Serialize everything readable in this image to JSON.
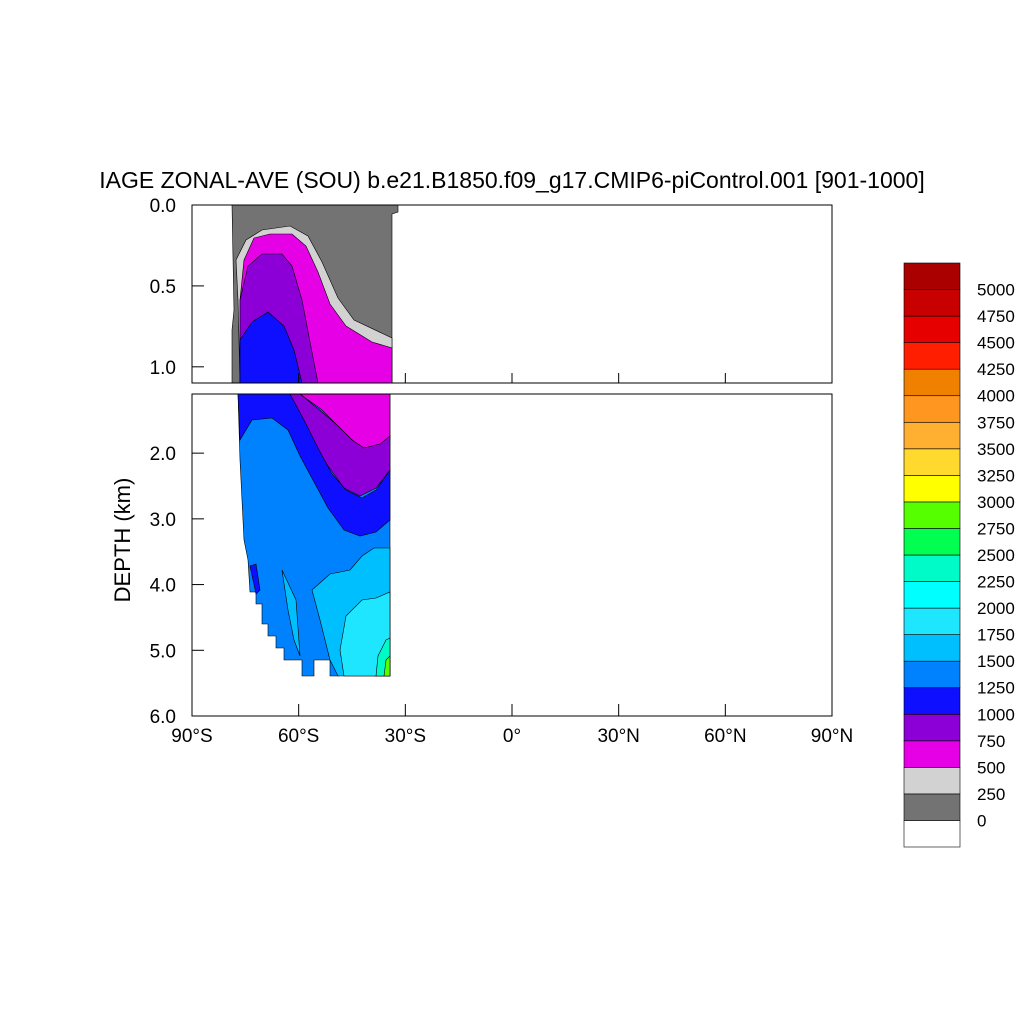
{
  "chart_data": {
    "type": "contour",
    "title": "IAGE ZONAL-AVE (SOU) b.e21.B1850.f09_g17.CMIP6-piControl.001 [901-1000]",
    "ylabel": "DEPTH (km)",
    "xlabel": "",
    "x_range": [
      -90,
      90
    ],
    "x_ticks": [
      -90,
      -60,
      -30,
      0,
      30,
      60,
      90
    ],
    "x_tick_labels": [
      "90°S",
      "60°S",
      "30°S",
      "0°",
      "30°N",
      "60°N",
      "90°N"
    ],
    "y_range_upper_panel": [
      0,
      1.1
    ],
    "y_range_lower_panel": [
      1.1,
      6.0
    ],
    "y_ticks_upper": [
      0.0,
      0.5,
      1.0
    ],
    "y_tick_labels_upper": [
      "0.0",
      "0.5",
      "1.0"
    ],
    "y_ticks_lower": [
      2.0,
      3.0,
      4.0,
      5.0,
      6.0
    ],
    "y_tick_labels_lower": [
      "2.0",
      "3.0",
      "4.0",
      "5.0",
      "6.0"
    ],
    "y_inverted": true,
    "levels": [
      0,
      250,
      500,
      750,
      1000,
      1250,
      1500,
      1750,
      2000,
      2250,
      2500,
      2750,
      3000,
      3250,
      3500,
      3750,
      4000,
      4250,
      4500,
      4750,
      5000
    ],
    "level_labels": [
      "0",
      "250",
      "500",
      "750",
      "1000",
      "1250",
      "1500",
      "1750",
      "2000",
      "2250",
      "2500",
      "2750",
      "3000",
      "3250",
      "3500",
      "3750",
      "4000",
      "4250",
      "4500",
      "4750",
      "5000"
    ],
    "colors": [
      "#ffffff",
      "#737373",
      "#d2d2d2",
      "#e600e6",
      "#8c00d7",
      "#0f0fff",
      "#0082ff",
      "#00bfff",
      "#1ee6ff",
      "#00ffff",
      "#00fac8",
      "#00ff50",
      "#55ff00",
      "#ffff00",
      "#ffd92e",
      "#ffb030",
      "#ff9620",
      "#f08000",
      "#ff1e00",
      "#e60000",
      "#c80000",
      "#aa0000"
    ],
    "data_extent_lat": [
      -78,
      -33
    ],
    "max_depth_km": 5.4,
    "colorbar": "right, vertical",
    "grid": false
  }
}
